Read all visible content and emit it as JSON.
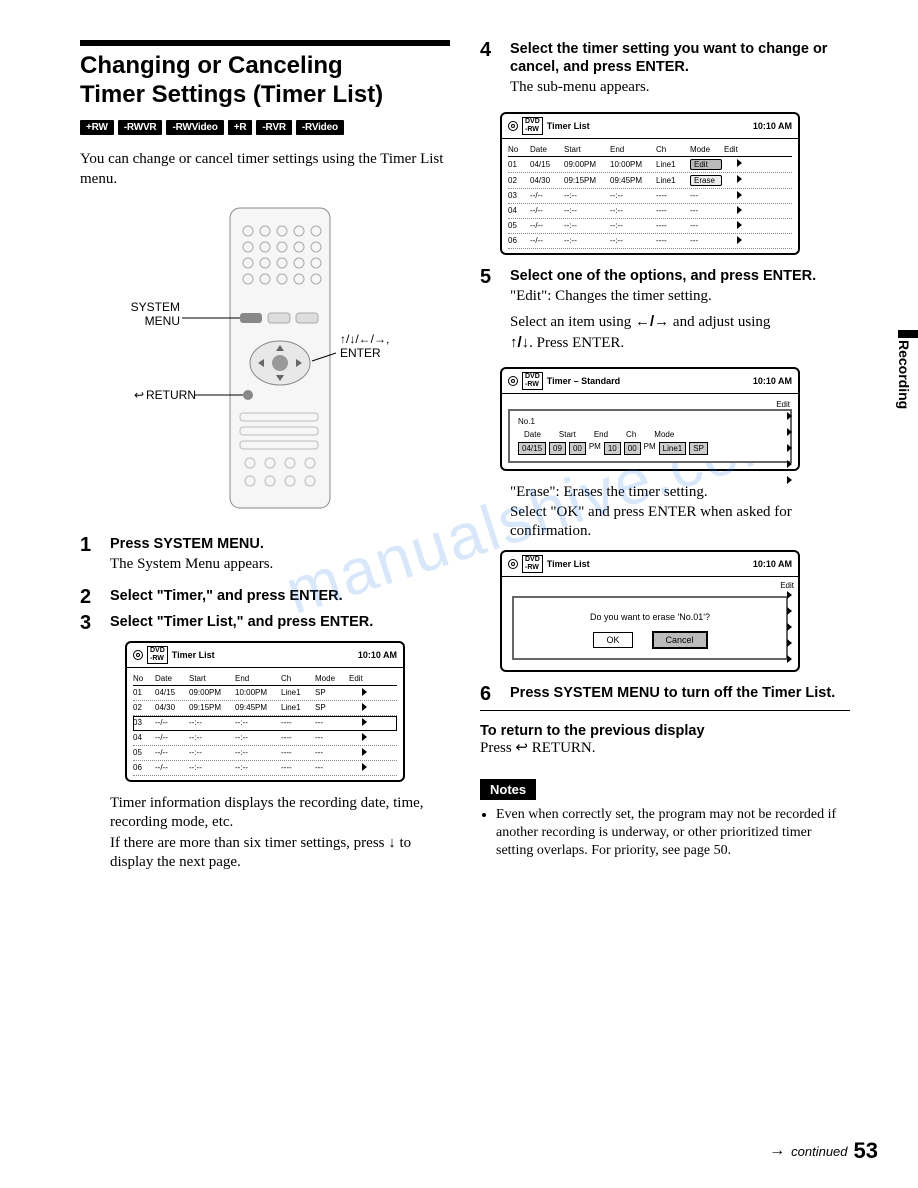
{
  "watermark": "manualshive.com",
  "side_tab": "Recording",
  "title_line1": "Changing or Canceling",
  "title_line2": "Timer Settings (Timer List)",
  "badges": [
    "+RW",
    "-RWVR",
    "-RWVideo",
    "+R",
    "-RVR",
    "-RVideo"
  ],
  "intro": "You can change or cancel timer settings using the Timer List menu.",
  "remote_labels": {
    "system_menu": "SYSTEM MENU",
    "arrows_enter": "↑/↓/←/→, ENTER",
    "return": "RETURN"
  },
  "steps_left": {
    "s1": {
      "num": "1",
      "title": "Press SYSTEM MENU.",
      "text": "The System Menu appears."
    },
    "s2": {
      "num": "2",
      "title": "Select \"Timer,\" and press ENTER."
    },
    "s3": {
      "num": "3",
      "title": "Select \"Timer List,\" and press ENTER."
    }
  },
  "screen1": {
    "title": "Timer List",
    "time": "10:10 AM",
    "headers": {
      "no": "No",
      "date": "Date",
      "start": "Start",
      "end": "End",
      "ch": "Ch",
      "mode": "Mode",
      "edit": "Edit"
    },
    "rows": [
      {
        "no": "01",
        "date": "04/15",
        "start": "09:00PM",
        "end": "10:00PM",
        "ch": "Line1",
        "mode": "SP"
      },
      {
        "no": "02",
        "date": "04/30",
        "start": "09:15PM",
        "end": "09:45PM",
        "ch": "Line1",
        "mode": "SP"
      },
      {
        "no": "03",
        "date": "--/--",
        "start": "--:--",
        "end": "--:--",
        "ch": "----",
        "mode": "---",
        "boxed": true
      },
      {
        "no": "04",
        "date": "--/--",
        "start": "--:--",
        "end": "--:--",
        "ch": "----",
        "mode": "---"
      },
      {
        "no": "05",
        "date": "--/--",
        "start": "--:--",
        "end": "--:--",
        "ch": "----",
        "mode": "---"
      },
      {
        "no": "06",
        "date": "--/--",
        "start": "--:--",
        "end": "--:--",
        "ch": "----",
        "mode": "---"
      }
    ]
  },
  "after_screen1_p1": "Timer information displays the recording date, time, recording mode, etc.",
  "after_screen1_p2a": "If there are more than six timer settings, press ",
  "after_screen1_p2_arrow": "↓",
  "after_screen1_p2b": " to display the next page.",
  "step4": {
    "num": "4",
    "title": "Select the timer setting you want to change or cancel, and press ENTER.",
    "text": "The sub-menu appears."
  },
  "screen2": {
    "title": "Timer List",
    "time": "10:10 AM",
    "headers": {
      "no": "No",
      "date": "Date",
      "start": "Start",
      "end": "End",
      "ch": "Ch",
      "mode": "Mode",
      "edit": "Edit"
    },
    "rows": [
      {
        "no": "01",
        "date": "04/15",
        "start": "09:00PM",
        "end": "10:00PM",
        "ch": "Line1",
        "mode_btn": "Edit",
        "sel": true
      },
      {
        "no": "02",
        "date": "04/30",
        "start": "09:15PM",
        "end": "09:45PM",
        "ch": "Line1",
        "mode_btn": "Erase"
      },
      {
        "no": "03",
        "date": "--/--",
        "start": "--:--",
        "end": "--:--",
        "ch": "----",
        "mode": "---"
      },
      {
        "no": "04",
        "date": "--/--",
        "start": "--:--",
        "end": "--:--",
        "ch": "----",
        "mode": "---"
      },
      {
        "no": "05",
        "date": "--/--",
        "start": "--:--",
        "end": "--:--",
        "ch": "----",
        "mode": "---"
      },
      {
        "no": "06",
        "date": "--/--",
        "start": "--:--",
        "end": "--:--",
        "ch": "----",
        "mode": "---"
      }
    ]
  },
  "step5": {
    "num": "5",
    "title": "Select one of the options, and press ENTER.",
    "line1": "\"Edit\": Changes the timer setting.",
    "line2a": "Select an item using ",
    "line2_arrows": "←/→",
    "line2b": " and adjust using ",
    "line3_arrows": "↑/↓",
    "line3b": ". Press ENTER."
  },
  "screen3": {
    "title": "Timer – Standard",
    "time": "10:10 AM",
    "popup_title": "No.1",
    "labels": {
      "date": "Date",
      "start": "Start",
      "end": "End",
      "ch": "Ch",
      "mode": "Mode"
    },
    "fields": {
      "date": "04/15",
      "sh": "09",
      "sm": "00",
      "sap": "PM",
      "eh": "10",
      "em": "00",
      "eap": "PM",
      "ch": "Line1",
      "mode": "SP"
    },
    "edit": "Edit"
  },
  "step5_post_l1": "\"Erase\": Erases the timer setting.",
  "step5_post_l2": "Select \"OK\" and press ENTER when asked for confirmation.",
  "screen4": {
    "title": "Timer List",
    "time": "10:10 AM",
    "question": "Do you want to erase 'No.01'?",
    "ok": "OK",
    "cancel": "Cancel"
  },
  "step6": {
    "num": "6",
    "title": "Press SYSTEM MENU to turn off the Timer List."
  },
  "return_heading": "To return to the previous display",
  "return_text_a": "Press ",
  "return_icon": "↩",
  "return_text_b": " RETURN.",
  "notes_label": "Notes",
  "notes": [
    "Even when correctly set, the program may not be recorded if another recording is underway, or other prioritized timer setting overlaps. For priority, see page 50."
  ],
  "footer": {
    "arrow": "→",
    "continued": "continued",
    "page": "53"
  }
}
